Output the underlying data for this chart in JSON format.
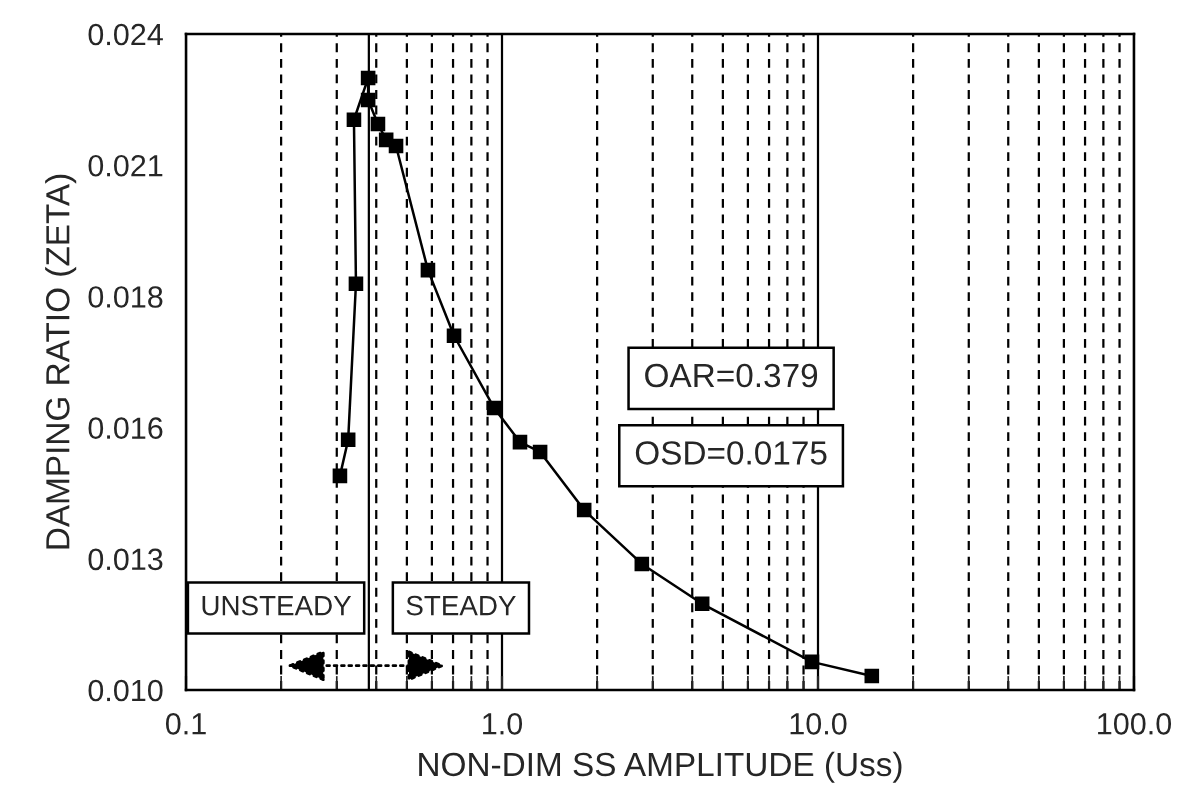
{
  "chart_data": {
    "type": "line",
    "xlabel": "NON-DIM SS AMPLITUDE (Uss)",
    "ylabel": "DAMPING RATIO (ZETA)",
    "log": "x",
    "grid": "x",
    "marker": "square",
    "line_style": "solid",
    "xlim": [
      0.1,
      100
    ],
    "xticks": [
      {
        "value": 0.1,
        "label": "0.1"
      },
      {
        "value": 1,
        "label": "1.0"
      },
      {
        "value": 10,
        "label": "10.0"
      },
      {
        "value": 100,
        "label": "100.0"
      }
    ],
    "ylim": [
      0.01,
      0.024
    ],
    "yticks": [
      {
        "value": 0.01,
        "label": "0.010"
      },
      {
        "value": 0.0128,
        "label": "0.013"
      },
      {
        "value": 0.0156,
        "label": "0.016"
      },
      {
        "value": 0.0184,
        "label": "0.018"
      },
      {
        "value": 0.0212,
        "label": "0.021"
      },
      {
        "value": 0.024,
        "label": "0.024"
      }
    ],
    "series": [
      {
        "color": "#000000",
        "x": [
          0.307,
          0.326,
          0.345,
          0.34,
          0.377,
          0.377,
          0.405,
          0.43,
          0.462,
          0.583,
          0.705,
          0.944,
          1.14,
          1.32,
          1.82,
          2.77,
          4.3,
          9.57,
          14.8
        ],
        "values": [
          0.01457,
          0.01534,
          0.01867,
          0.02217,
          0.02306,
          0.02259,
          0.02208,
          0.02174,
          0.02161,
          0.01896,
          0.01756,
          0.01602,
          0.01529,
          0.01508,
          0.01384,
          0.01269,
          0.01184,
          0.0106,
          0.0103
        ]
      }
    ],
    "ref_lines": [
      {
        "axis": "x",
        "value": 0.379,
        "color": "#000000"
      }
    ],
    "annotations": [
      "UNSTEADY",
      "STEADY",
      "OAR=0.379",
      "OSD=0.0175"
    ]
  }
}
